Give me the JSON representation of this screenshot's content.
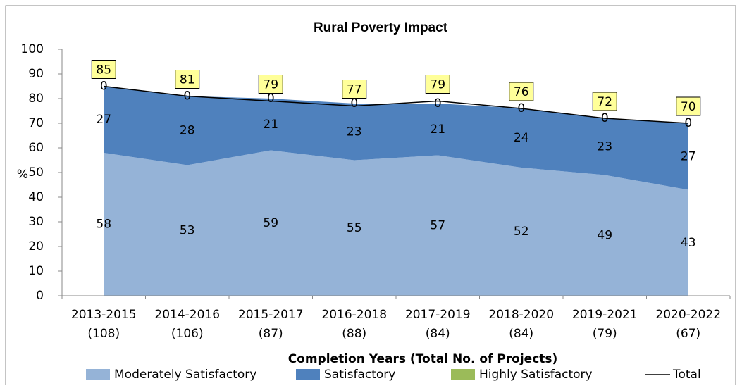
{
  "chart_data": {
    "type": "area",
    "title": "Rural Poverty Impact",
    "ylabel": "%",
    "xlabel": "Completion Years (Total No. of Projects)",
    "categories": [
      [
        "2013-2015",
        "(108)"
      ],
      [
        "2014-2016",
        "(106)"
      ],
      [
        "2015-2017",
        "(87)"
      ],
      [
        "2016-2018",
        "(88)"
      ],
      [
        "2017-2019",
        "(84)"
      ],
      [
        "2018-2020",
        "(84)"
      ],
      [
        "2019-2021",
        "(79)"
      ],
      [
        "2020-2022",
        "(67)"
      ]
    ],
    "series": [
      {
        "name": "Moderately Satisfactory",
        "color": "#95b3d7",
        "values": [
          58,
          53,
          59,
          55,
          57,
          52,
          49,
          43
        ]
      },
      {
        "name": "Satisfactory",
        "color": "#4f81bd",
        "values": [
          27,
          28,
          21,
          23,
          21,
          24,
          23,
          27
        ]
      },
      {
        "name": "Highly Satisfactory",
        "color": "#9bbb59",
        "values": [
          0,
          0,
          0,
          0,
          0,
          0,
          0,
          0
        ]
      },
      {
        "name": "Total",
        "color": "#000000",
        "type": "line",
        "values": [
          85,
          81,
          79,
          77,
          79,
          76,
          72,
          70
        ]
      }
    ],
    "ylim": [
      0,
      100
    ],
    "yticks": [
      0,
      10,
      20,
      30,
      40,
      50,
      60,
      70,
      80,
      90,
      100
    ]
  }
}
